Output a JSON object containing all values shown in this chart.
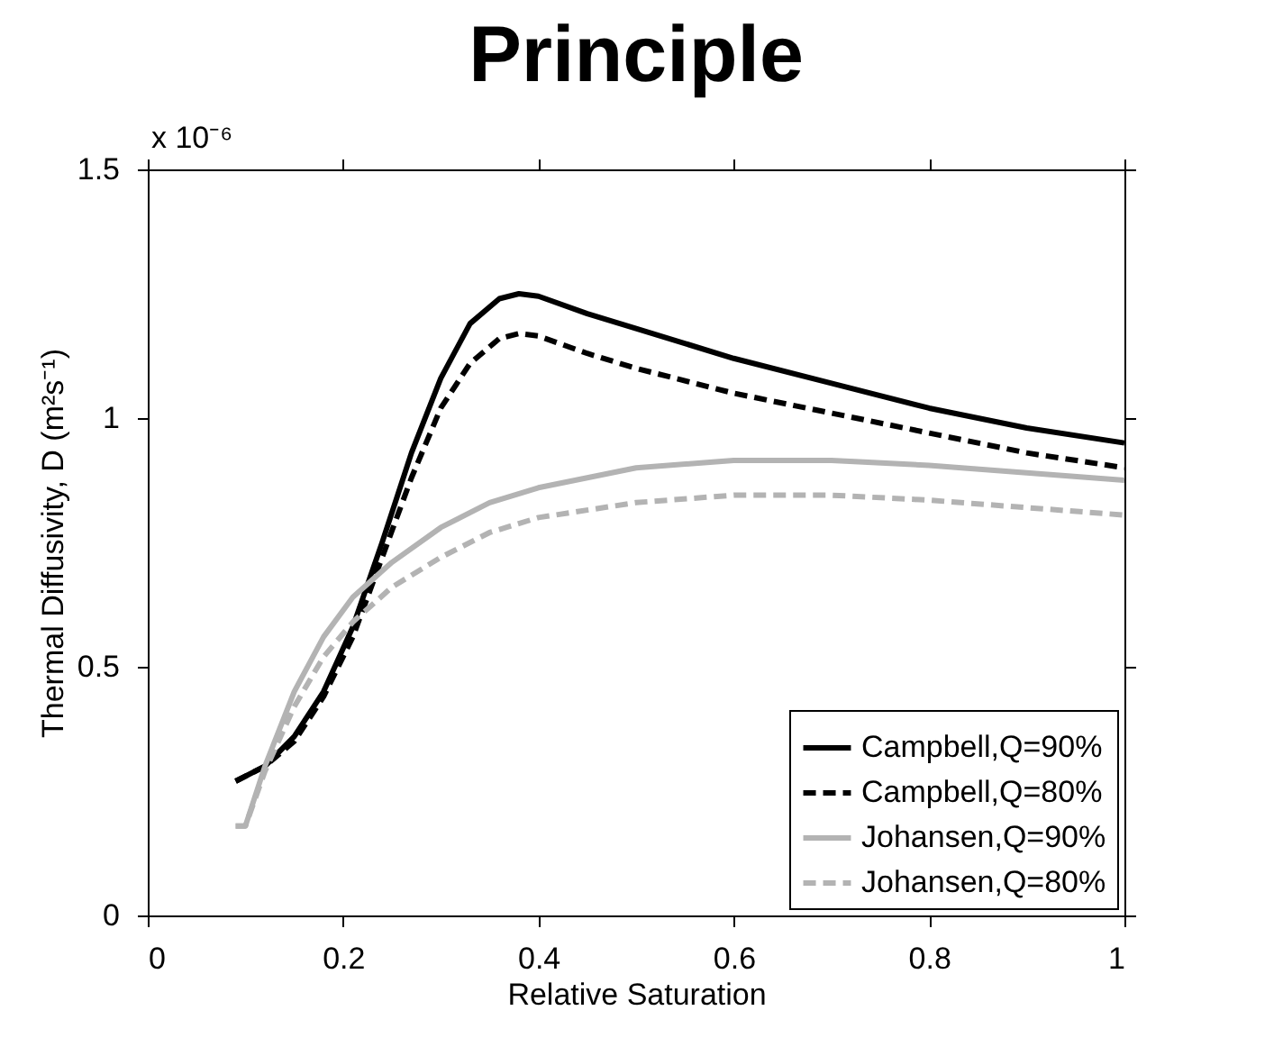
{
  "chart_data": {
    "type": "line",
    "title": "Principle",
    "xlabel": "Relative Saturation",
    "ylabel": "Thermal Diffusivity, D (m²s⁻¹)",
    "annotations": [
      "x 10⁻⁶"
    ],
    "xlim": [
      0,
      1
    ],
    "xticks": [
      0,
      0.2,
      0.4,
      0.6,
      0.8,
      1
    ],
    "ylim": [
      0,
      1.5
    ],
    "yticks": [
      0,
      0.5,
      1,
      1.5
    ],
    "grid": false,
    "legend": "bottom right",
    "marker": "none",
    "series": [
      {
        "name": "Campbell,Q=90%",
        "color": "#000000",
        "line_style": "solid",
        "x": [
          0.09,
          0.12,
          0.15,
          0.18,
          0.21,
          0.24,
          0.27,
          0.3,
          0.33,
          0.36,
          0.38,
          0.4,
          0.45,
          0.5,
          0.6,
          0.7,
          0.8,
          0.9,
          1.0
        ],
        "values": [
          0.27,
          0.3,
          0.36,
          0.45,
          0.58,
          0.75,
          0.93,
          1.08,
          1.19,
          1.24,
          1.25,
          1.245,
          1.21,
          1.18,
          1.12,
          1.07,
          1.02,
          0.98,
          0.95
        ]
      },
      {
        "name": "Campbell,Q=80%",
        "color": "#000000",
        "line_style": "dashed",
        "x": [
          0.09,
          0.12,
          0.15,
          0.18,
          0.21,
          0.24,
          0.27,
          0.3,
          0.33,
          0.36,
          0.38,
          0.4,
          0.45,
          0.5,
          0.6,
          0.7,
          0.8,
          0.9,
          1.0
        ],
        "values": [
          0.27,
          0.3,
          0.35,
          0.44,
          0.56,
          0.72,
          0.88,
          1.02,
          1.11,
          1.16,
          1.17,
          1.165,
          1.13,
          1.1,
          1.05,
          1.01,
          0.97,
          0.93,
          0.9
        ]
      },
      {
        "name": "Johansen,Q=90%",
        "color": "#b3b3b3",
        "line_style": "solid",
        "x": [
          0.09,
          0.1,
          0.12,
          0.15,
          0.18,
          0.21,
          0.25,
          0.3,
          0.35,
          0.4,
          0.5,
          0.6,
          0.7,
          0.8,
          0.9,
          1.0
        ],
        "values": [
          0.18,
          0.18,
          0.3,
          0.45,
          0.56,
          0.64,
          0.71,
          0.78,
          0.83,
          0.86,
          0.9,
          0.915,
          0.915,
          0.905,
          0.89,
          0.875
        ]
      },
      {
        "name": "Johansen,Q=80%",
        "color": "#b3b3b3",
        "line_style": "dashed",
        "x": [
          0.09,
          0.1,
          0.12,
          0.15,
          0.18,
          0.21,
          0.25,
          0.3,
          0.35,
          0.4,
          0.5,
          0.6,
          0.7,
          0.8,
          0.9,
          1.0
        ],
        "values": [
          0.18,
          0.18,
          0.29,
          0.42,
          0.52,
          0.59,
          0.66,
          0.72,
          0.77,
          0.8,
          0.83,
          0.845,
          0.845,
          0.835,
          0.82,
          0.805
        ]
      }
    ]
  }
}
